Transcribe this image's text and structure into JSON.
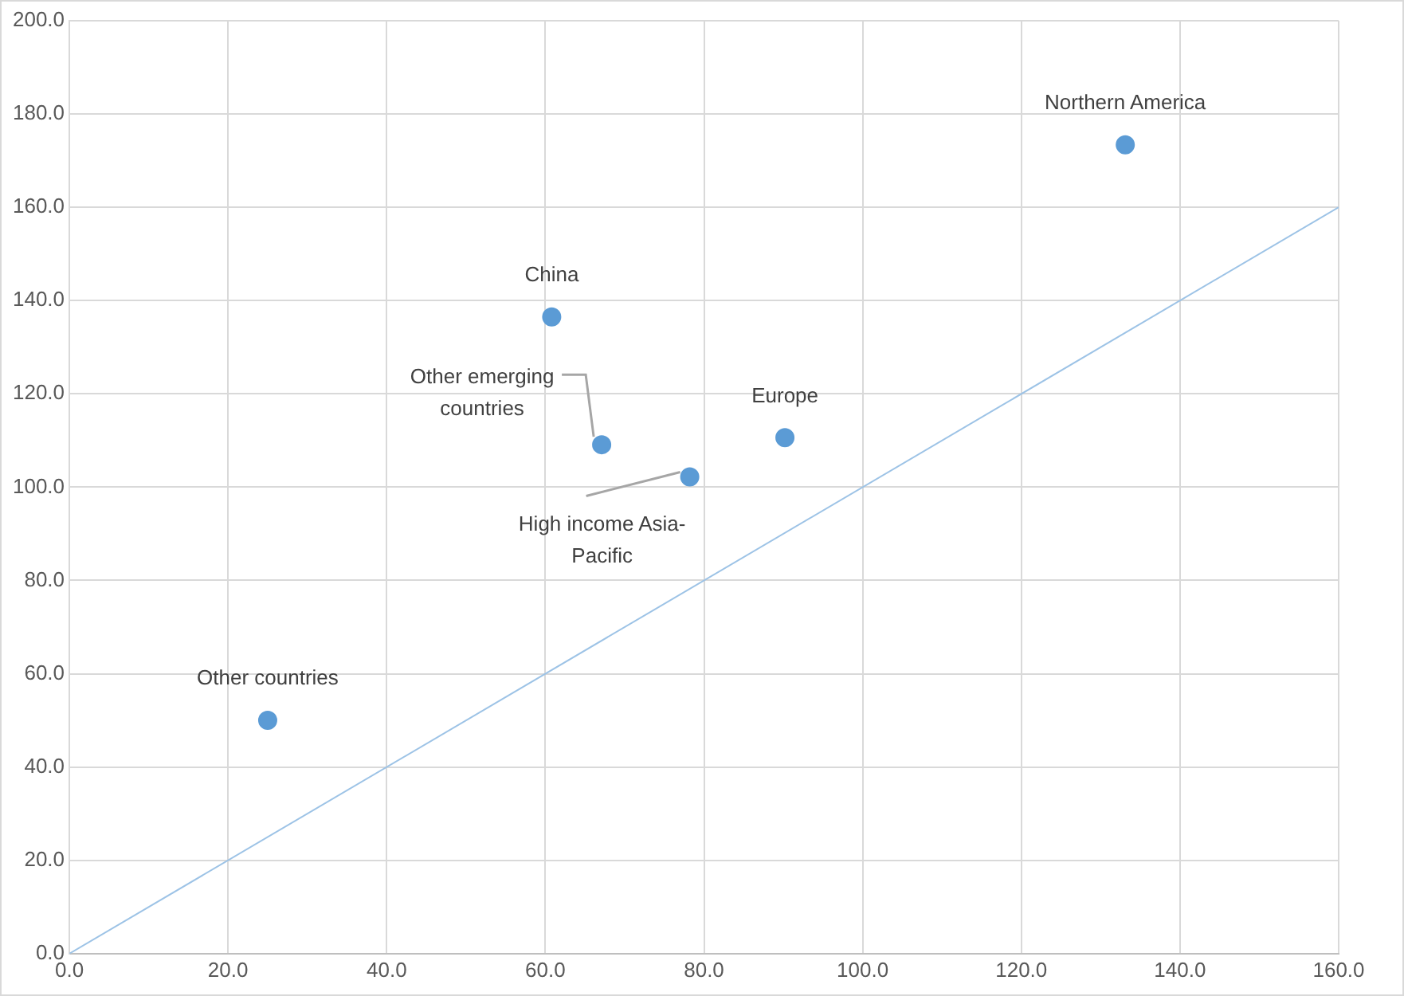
{
  "chart_data": {
    "type": "scatter",
    "marker": "circle",
    "grid": true,
    "xlim": [
      0,
      160
    ],
    "ylim": [
      0,
      200
    ],
    "xticks": [
      {
        "value": 0,
        "label": "0.0"
      },
      {
        "value": 20,
        "label": "20.0"
      },
      {
        "value": 40,
        "label": "40.0"
      },
      {
        "value": 60,
        "label": "60.0"
      },
      {
        "value": 80,
        "label": "80.0"
      },
      {
        "value": 100,
        "label": "100.0"
      },
      {
        "value": 120,
        "label": "120.0"
      },
      {
        "value": 140,
        "label": "140.0"
      },
      {
        "value": 160,
        "label": "160.0"
      }
    ],
    "yticks": [
      {
        "value": 0,
        "label": "0.0"
      },
      {
        "value": 20,
        "label": "20.0"
      },
      {
        "value": 40,
        "label": "40.0"
      },
      {
        "value": 60,
        "label": "60.0"
      },
      {
        "value": 80,
        "label": "80.0"
      },
      {
        "value": 100,
        "label": "100.0"
      },
      {
        "value": 120,
        "label": "120.0"
      },
      {
        "value": 140,
        "label": "140.0"
      },
      {
        "value": 160,
        "label": "160.0"
      },
      {
        "value": 180,
        "label": "180.0"
      },
      {
        "value": 200,
        "label": "200.0"
      }
    ],
    "series": [
      {
        "color": "#5b9bd5",
        "x": [
          133.1,
          60.8,
          67.1,
          90.2,
          78.2,
          25.0
        ],
        "values": [
          173.4,
          136.5,
          109.1,
          110.6,
          102.2,
          50.0
        ]
      },
      {
        "type": "line",
        "marker": "none",
        "color": "#9dc3e6",
        "x": [
          0,
          160
        ],
        "values": [
          0,
          160
        ]
      }
    ],
    "annotations": [
      {
        "text": "Northern America",
        "x": 133.1,
        "y": 173.4
      },
      {
        "text": "China",
        "x": 60.8,
        "y": 136.5
      },
      {
        "text": "Other emerging countries",
        "x": 67.1,
        "y": 109.1
      },
      {
        "text": "Europe",
        "x": 90.2,
        "y": 110.6
      },
      {
        "text": "High income Asia-Pacific",
        "x": 78.2,
        "y": 102.2
      },
      {
        "text": "Other countries",
        "x": 25.0,
        "y": 50.0
      }
    ]
  }
}
